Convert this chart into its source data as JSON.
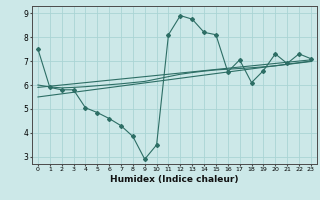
{
  "title": "",
  "xlabel": "Humidex (Indice chaleur)",
  "bg_color": "#cce8e8",
  "line_color": "#2d6e65",
  "grid_color": "#aad4d4",
  "axis_color": "#4a4a4a",
  "xlim": [
    -0.5,
    23.5
  ],
  "ylim": [
    2.7,
    9.3
  ],
  "yticks": [
    3,
    4,
    5,
    6,
    7,
    8,
    9
  ],
  "xticks": [
    0,
    1,
    2,
    3,
    4,
    5,
    6,
    7,
    8,
    9,
    10,
    11,
    12,
    13,
    14,
    15,
    16,
    17,
    18,
    19,
    20,
    21,
    22,
    23
  ],
  "series1_x": [
    0,
    1,
    2,
    3,
    4,
    5,
    6,
    7,
    8,
    9,
    10,
    11,
    12,
    13,
    14,
    15,
    16,
    17,
    18,
    19,
    20,
    21,
    22,
    23
  ],
  "series1_y": [
    7.5,
    5.9,
    5.8,
    5.8,
    5.05,
    4.85,
    4.6,
    4.3,
    3.85,
    2.9,
    3.5,
    8.1,
    8.9,
    8.75,
    8.2,
    8.1,
    6.55,
    7.05,
    6.1,
    6.6,
    7.3,
    6.9,
    7.3,
    7.1
  ],
  "trend1_x": [
    0,
    23
  ],
  "trend1_y": [
    5.9,
    7.05
  ],
  "trend2_x": [
    0,
    23
  ],
  "trend2_y": [
    5.5,
    7.0
  ],
  "smooth_x": [
    0,
    1,
    2,
    3,
    4,
    5,
    6,
    7,
    8,
    9,
    10,
    11,
    12,
    13,
    14,
    15,
    16,
    17,
    18,
    19,
    20,
    21,
    22,
    23
  ],
  "smooth_y": [
    6.0,
    5.92,
    5.88,
    5.9,
    5.93,
    5.97,
    6.01,
    6.05,
    6.1,
    6.15,
    6.25,
    6.35,
    6.45,
    6.52,
    6.58,
    6.63,
    6.66,
    6.69,
    6.72,
    6.76,
    6.8,
    6.86,
    6.92,
    6.98
  ]
}
